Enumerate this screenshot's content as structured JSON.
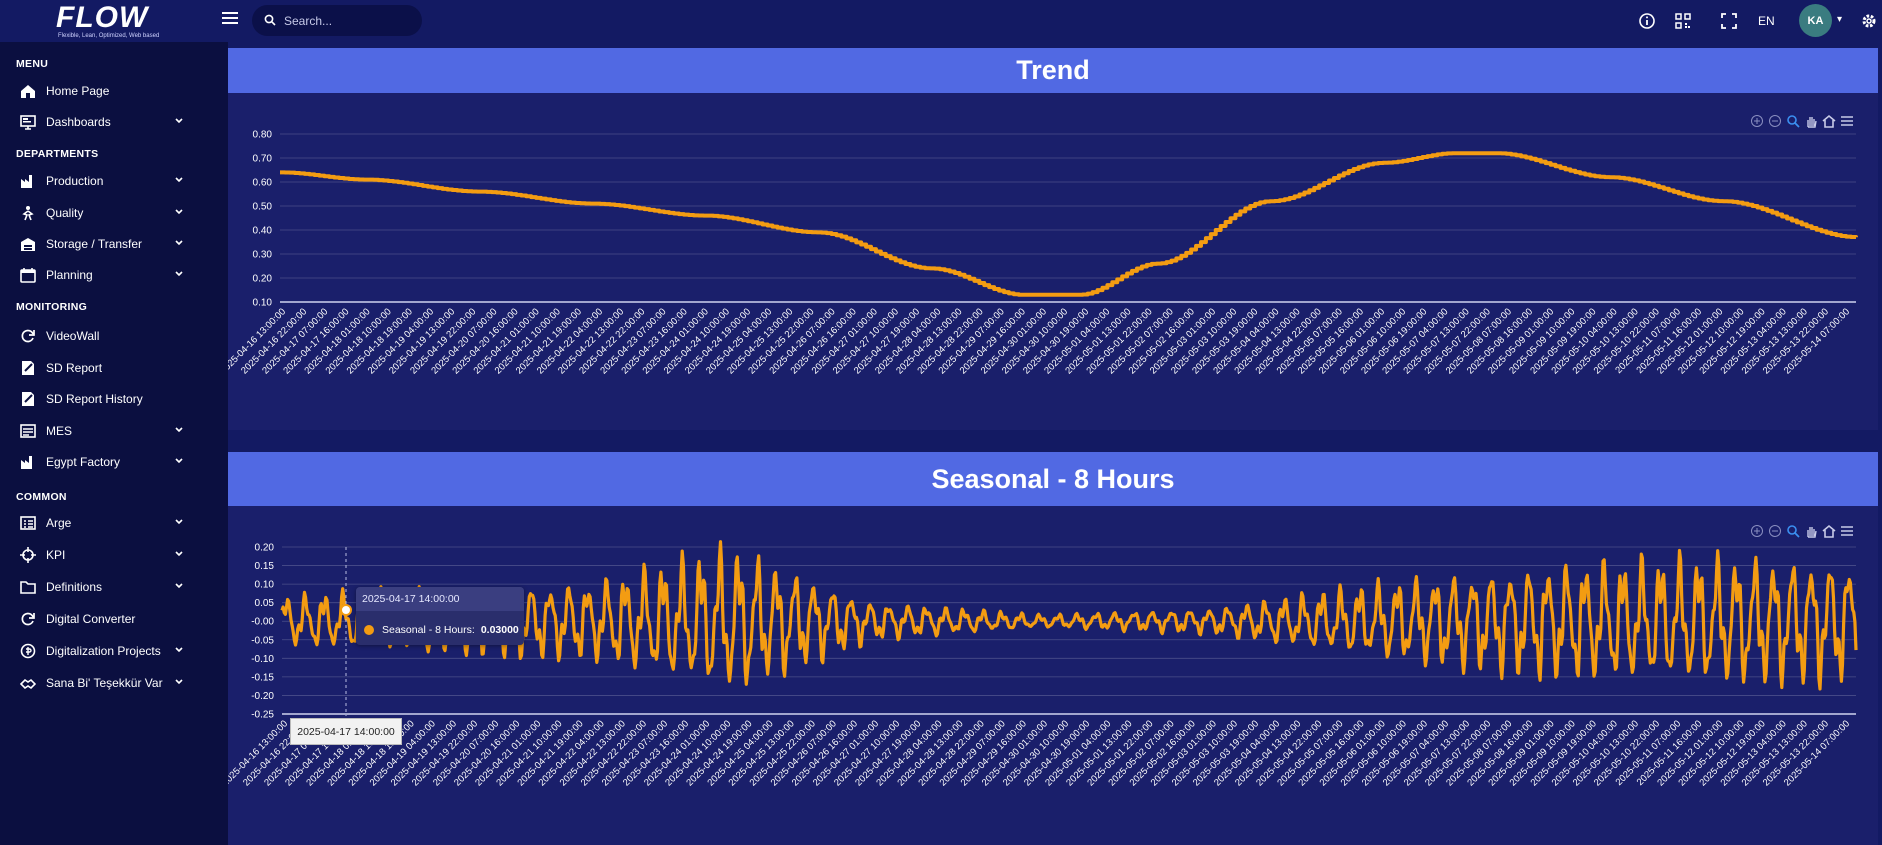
{
  "app": {
    "logo_text": "FLOW",
    "logo_tagline": "Flexible, Lean, Optimized, Web based"
  },
  "topbar": {
    "search_placeholder": "Search...",
    "language": "EN",
    "avatar_initials": "KA",
    "icons": [
      "info-icon",
      "qr-code-icon",
      "fullscreen-icon",
      "gear-icon"
    ]
  },
  "sidebar": {
    "sections": [
      {
        "title": "MENU",
        "items": [
          {
            "label": "Home Page",
            "icon": "home-icon",
            "expandable": false
          },
          {
            "label": "Dashboards",
            "icon": "monitor-icon",
            "expandable": true
          }
        ]
      },
      {
        "title": "DEPARTMENTS",
        "items": [
          {
            "label": "Production",
            "icon": "factory-icon",
            "expandable": true
          },
          {
            "label": "Quality",
            "icon": "person-star-icon",
            "expandable": true
          },
          {
            "label": "Storage / Transfer",
            "icon": "warehouse-icon",
            "expandable": true
          },
          {
            "label": "Planning",
            "icon": "calendar-icon",
            "expandable": true
          }
        ]
      },
      {
        "title": "MONITORING",
        "items": [
          {
            "label": "VideoWall",
            "icon": "refresh-icon",
            "expandable": false
          },
          {
            "label": "SD Report",
            "icon": "report-icon",
            "expandable": false
          },
          {
            "label": "SD Report History",
            "icon": "report-icon",
            "expandable": false
          },
          {
            "label": "MES",
            "icon": "mes-icon",
            "expandable": true
          },
          {
            "label": "Egypt Factory",
            "icon": "factory-icon",
            "expandable": true
          }
        ]
      },
      {
        "title": "COMMON",
        "items": [
          {
            "label": "Arge",
            "icon": "grid-icon",
            "expandable": true
          },
          {
            "label": "KPI",
            "icon": "target-icon",
            "expandable": true
          },
          {
            "label": "Definitions",
            "icon": "folder-icon",
            "expandable": true
          },
          {
            "label": "Digital Converter",
            "icon": "refresh-icon",
            "expandable": false
          },
          {
            "label": "Digitalization Projects",
            "icon": "coin-icon",
            "expandable": true
          },
          {
            "label": "Sana Bi' Teşekkür Var",
            "icon": "handshake-icon",
            "expandable": true
          }
        ]
      }
    ]
  },
  "panels": {
    "trend_title": "Trend",
    "seasonal_title": "Seasonal - 8 Hours",
    "tooltip": {
      "date": "2025-04-17 14:00:00",
      "series": "Seasonal - 8 Hours:",
      "value": "0.03000"
    },
    "crosshair_label": "2025-04-17 14:00:00",
    "first_tick_trend": "2025-04-16 13:00:00",
    "first_tick_seasonal": "2025-04-16 13:00:00"
  },
  "chart_data": [
    {
      "type": "line",
      "title": "Trend",
      "series": [
        {
          "name": "",
          "color": "#f39c12",
          "x": [
            "2025-04-16 13:00:00",
            "2025-04-18 01:00:00",
            "2025-04-20 01:00:00",
            "2025-04-22 01:00:00",
            "2025-04-24 01:00:00",
            "2025-04-26 01:00:00",
            "2025-04-28 01:00:00",
            "2025-04-29 16:00:00",
            "2025-04-30 16:00:00",
            "2025-05-02 01:00:00",
            "2025-05-04 01:00:00",
            "2025-05-06 01:00:00",
            "2025-05-07 07:00:00",
            "2025-05-08 01:00:00",
            "2025-05-10 01:00:00",
            "2025-05-12 01:00:00",
            "2025-05-14 10:00:00"
          ],
          "values": [
            0.64,
            0.61,
            0.56,
            0.51,
            0.46,
            0.39,
            0.24,
            0.13,
            0.13,
            0.26,
            0.52,
            0.68,
            0.72,
            0.72,
            0.62,
            0.52,
            0.37
          ]
        }
      ],
      "ylim": [
        0.1,
        0.8
      ],
      "yticks": [
        "0.80",
        "0.70",
        "0.60",
        "0.50",
        "0.40",
        "0.30",
        "0.20",
        "0.10"
      ],
      "xticks": [
        "2025-04-16 13:00:00",
        "2025-04-16 22:00:00",
        "2025-04-17 07:00:00",
        "2025-04-17 16:00:00",
        "2025-04-18 01:00:00",
        "2025-04-18 10:00:00",
        "2025-04-18 19:00:00",
        "2025-04-19 04:00:00",
        "2025-04-19 13:00:00",
        "2025-04-19 22:00:00",
        "2025-04-20 07:00:00",
        "2025-04-20 16:00:00",
        "2025-04-21 01:00:00",
        "2025-04-21 10:00:00",
        "2025-04-21 19:00:00",
        "2025-04-22 04:00:00",
        "2025-04-22 13:00:00",
        "2025-04-22 22:00:00",
        "2025-04-23 07:00:00",
        "2025-04-23 16:00:00",
        "2025-04-24 01:00:00",
        "2025-04-24 10:00:00",
        "2025-04-24 19:00:00",
        "2025-04-25 04:00:00",
        "2025-04-25 13:00:00",
        "2025-04-25 22:00:00",
        "2025-04-26 07:00:00",
        "2025-04-26 16:00:00",
        "2025-04-27 01:00:00",
        "2025-04-27 10:00:00",
        "2025-04-27 19:00:00",
        "2025-04-28 04:00:00",
        "2025-04-28 13:00:00",
        "2025-04-28 22:00:00",
        "2025-04-29 07:00:00",
        "2025-04-29 16:00:00",
        "2025-04-30 01:00:00",
        "2025-04-30 10:00:00",
        "2025-04-30 19:00:00",
        "2025-05-01 04:00:00",
        "2025-05-01 13:00:00",
        "2025-05-01 22:00:00",
        "2025-05-02 07:00:00",
        "2025-05-02 16:00:00",
        "2025-05-03 01:00:00",
        "2025-05-03 10:00:00",
        "2025-05-03 19:00:00",
        "2025-05-04 04:00:00",
        "2025-05-04 13:00:00",
        "2025-05-04 22:00:00",
        "2025-05-05 07:00:00",
        "2025-05-05 16:00:00",
        "2025-05-06 01:00:00",
        "2025-05-06 10:00:00",
        "2025-05-06 19:00:00",
        "2025-05-07 04:00:00",
        "2025-05-07 13:00:00",
        "2025-05-07 22:00:00",
        "2025-05-08 07:00:00",
        "2025-05-08 16:00:00",
        "2025-05-09 01:00:00",
        "2025-05-09 10:00:00",
        "2025-05-09 19:00:00",
        "2025-05-10 04:00:00",
        "2025-05-10 13:00:00",
        "2025-05-10 22:00:00",
        "2025-05-11 07:00:00",
        "2025-05-11 16:00:00",
        "2025-05-12 01:00:00",
        "2025-05-12 10:00:00",
        "2025-05-12 19:00:00",
        "2025-05-13 04:00:00",
        "2025-05-13 13:00:00",
        "2025-05-13 22:00:00",
        "2025-05-14 07:00:00"
      ],
      "grid": true
    },
    {
      "type": "line",
      "title": "Seasonal - 8 Hours",
      "series": [
        {
          "name": "Seasonal - 8 Hours",
          "color": "#f39c12",
          "x": [
            "2025-04-16 13:00:00",
            "2025-04-19 00:00:00",
            "2025-04-22 00:00:00",
            "2025-04-24 12:00:00",
            "2025-04-27 00:00:00",
            "2025-04-30 00:00:00",
            "2025-05-03 00:00:00",
            "2025-05-06 00:00:00",
            "2025-05-09 00:00:00",
            "2025-05-12 00:00:00",
            "2025-05-14 10:00:00"
          ],
          "amplitude": [
            0.08,
            0.1,
            0.12,
            0.23,
            0.06,
            0.02,
            0.04,
            0.12,
            0.18,
            0.2,
            0.19
          ]
        }
      ],
      "ylim": [
        -0.25,
        0.2
      ],
      "yticks": [
        "0.20",
        "0.15",
        "0.10",
        "0.05",
        "-0.00",
        "-0.05",
        "-0.10",
        "-0.15",
        "-0.20",
        "-0.25"
      ],
      "xticks": [
        "2025-04-16 13:00:00",
        "2025-04-16 22:00:00",
        "2025-04-17 07:00:00",
        "2025-04-17 16:00:00",
        "2025-04-18 01:00:00",
        "2025-04-18 10:00:00",
        "2025-04-18 19:00:00",
        "2025-04-19 04:00:00",
        "2025-04-19 13:00:00",
        "2025-04-19 22:00:00",
        "2025-04-20 07:00:00",
        "2025-04-20 16:00:00",
        "2025-04-21 01:00:00",
        "2025-04-21 10:00:00",
        "2025-04-21 19:00:00",
        "2025-04-22 04:00:00",
        "2025-04-22 13:00:00",
        "2025-04-22 22:00:00",
        "2025-04-23 07:00:00",
        "2025-04-23 16:00:00",
        "2025-04-24 01:00:00",
        "2025-04-24 10:00:00",
        "2025-04-24 19:00:00",
        "2025-04-25 04:00:00",
        "2025-04-25 13:00:00",
        "2025-04-25 22:00:00",
        "2025-04-26 07:00:00",
        "2025-04-26 16:00:00",
        "2025-04-27 01:00:00",
        "2025-04-27 10:00:00",
        "2025-04-27 19:00:00",
        "2025-04-28 04:00:00",
        "2025-04-28 13:00:00",
        "2025-04-28 22:00:00",
        "2025-04-29 07:00:00",
        "2025-04-29 16:00:00",
        "2025-04-30 01:00:00",
        "2025-04-30 10:00:00",
        "2025-04-30 19:00:00",
        "2025-05-01 04:00:00",
        "2025-05-01 13:00:00",
        "2025-05-01 22:00:00",
        "2025-05-02 07:00:00",
        "2025-05-02 16:00:00",
        "2025-05-03 01:00:00",
        "2025-05-03 10:00:00",
        "2025-05-03 19:00:00",
        "2025-05-04 04:00:00",
        "2025-05-04 13:00:00",
        "2025-05-04 22:00:00",
        "2025-05-05 07:00:00",
        "2025-05-05 16:00:00",
        "2025-05-06 01:00:00",
        "2025-05-06 10:00:00",
        "2025-05-06 19:00:00",
        "2025-05-07 04:00:00",
        "2025-05-07 13:00:00",
        "2025-05-07 22:00:00",
        "2025-05-08 07:00:00",
        "2025-05-08 16:00:00",
        "2025-05-09 01:00:00",
        "2025-05-09 10:00:00",
        "2025-05-09 19:00:00",
        "2025-05-10 04:00:00",
        "2025-05-10 13:00:00",
        "2025-05-10 22:00:00",
        "2025-05-11 07:00:00",
        "2025-05-11 16:00:00",
        "2025-05-12 01:00:00",
        "2025-05-12 10:00:00",
        "2025-05-12 19:00:00",
        "2025-05-13 04:00:00",
        "2025-05-13 13:00:00",
        "2025-05-13 22:00:00",
        "2025-05-14 07:00:00"
      ],
      "grid": true
    }
  ],
  "colors": {
    "background": "#131a63",
    "sidebar": "#0b0f40",
    "panel": "#1a1f6b",
    "panel_header": "#5169e3",
    "series": "#f39c12"
  }
}
